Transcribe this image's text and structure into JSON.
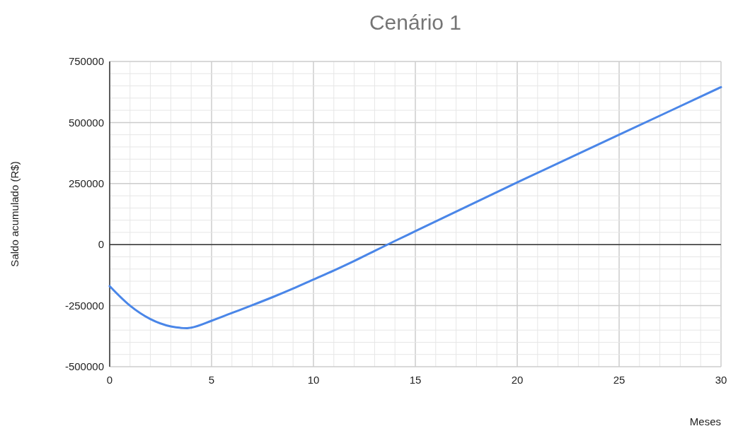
{
  "chart_data": {
    "type": "line",
    "title": "Cenário 1",
    "xlabel": "Meses",
    "ylabel": "Saldo acumulado (R$)",
    "xlim": [
      0,
      30
    ],
    "ylim": [
      -500000,
      750000
    ],
    "xticks": [
      0,
      {
        "value": 1,
        "label": null
      },
      {
        "value": 2,
        "label": null
      },
      {
        "value": 3,
        "label": null
      },
      {
        "value": 4,
        "label": null
      },
      5,
      {
        "value": 6,
        "label": null
      },
      {
        "value": 7,
        "label": null
      },
      {
        "value": 8,
        "label": null
      },
      {
        "value": 9,
        "label": null
      },
      10,
      {
        "value": 11,
        "label": null
      },
      {
        "value": 12,
        "label": null
      },
      {
        "value": 13,
        "label": null
      },
      {
        "value": 14,
        "label": null
      },
      15,
      {
        "value": 16,
        "label": null
      },
      {
        "value": 17,
        "label": null
      },
      {
        "value": 18,
        "label": null
      },
      {
        "value": 19,
        "label": null
      },
      20,
      {
        "value": 21,
        "label": null
      },
      {
        "value": 22,
        "label": null
      },
      {
        "value": 23,
        "label": null
      },
      {
        "value": 24,
        "label": null
      },
      25,
      {
        "value": 26,
        "label": null
      },
      {
        "value": 27,
        "label": null
      },
      {
        "value": 28,
        "label": null
      },
      {
        "value": 29,
        "label": null
      },
      30
    ],
    "yticks": [
      -500000,
      {
        "value": -450000,
        "label": null
      },
      {
        "value": -400000,
        "label": null
      },
      {
        "value": -350000,
        "label": null
      },
      {
        "value": -300000,
        "label": null
      },
      -250000,
      {
        "value": -200000,
        "label": null
      },
      {
        "value": -150000,
        "label": null
      },
      {
        "value": -100000,
        "label": null
      },
      {
        "value": -50000,
        "label": null
      },
      0,
      {
        "value": 50000,
        "label": null
      },
      {
        "value": 100000,
        "label": null
      },
      {
        "value": 150000,
        "label": null
      },
      {
        "value": 200000,
        "label": null
      },
      250000,
      {
        "value": 300000,
        "label": null
      },
      {
        "value": 350000,
        "label": null
      },
      {
        "value": 400000,
        "label": null
      },
      {
        "value": 450000,
        "label": null
      },
      500000,
      {
        "value": 550000,
        "label": null
      },
      {
        "value": 600000,
        "label": null
      },
      {
        "value": 650000,
        "label": null
      },
      {
        "value": 700000,
        "label": null
      },
      750000
    ],
    "grid": true,
    "marker": "none",
    "line_style": "solid",
    "series": [
      {
        "color": "#4a86e8",
        "x": [
          0,
          1,
          2,
          3,
          3.8,
          4,
          5,
          6,
          7,
          8,
          9,
          10,
          11,
          12,
          13,
          14,
          15,
          20,
          25,
          30
        ],
        "values": [
          -170000,
          -250000,
          -305000,
          -335000,
          -342000,
          -340000,
          -312000,
          -280000,
          -248000,
          -215000,
          -180000,
          -143000,
          -106000,
          -67000,
          -26000,
          15000,
          55000,
          255000,
          450000,
          645000
        ]
      }
    ]
  }
}
